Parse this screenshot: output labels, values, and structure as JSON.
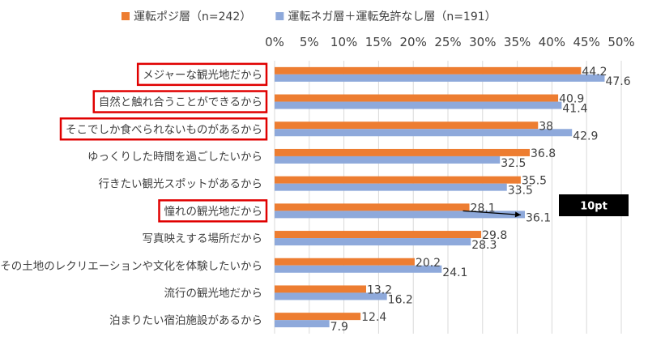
{
  "chart_data": {
    "type": "bar",
    "orientation": "horizontal",
    "categories": [
      "メジャーな観光地だから",
      "自然と触れ合うことができるから",
      "そこでしか食べられないものがあるから",
      "ゆっくりした時間を過ごしたいから",
      "行きたい観光スポットがあるから",
      "憧れの観光地だから",
      "写真映えする場所だから",
      "その土地のレクリエーションや文化を体験したいから",
      "流行の観光地だから",
      "泊まりたい宿泊施設があるから"
    ],
    "series": [
      {
        "name": "運転ポジ層（n=242）",
        "color": "#ED7D31",
        "values": [
          44.2,
          40.9,
          38,
          36.8,
          35.5,
          28.1,
          29.8,
          20.2,
          13.2,
          12.4
        ]
      },
      {
        "name": "運転ネガ層＋運転免許なし層（n=191）",
        "color": "#8EA9DB",
        "values": [
          47.6,
          41.4,
          42.9,
          32.5,
          33.5,
          36.1,
          28.3,
          24.1,
          16.2,
          7.9
        ]
      }
    ],
    "value_labels": [
      [
        "44.2",
        "40.9",
        "38",
        "36.8",
        "35.5",
        "28.1",
        "29.8",
        "20.2",
        "13.2",
        "12.4"
      ],
      [
        "47.6",
        "41.4",
        "42.9",
        "32.5",
        "33.5",
        "36.1",
        "28.3",
        "24.1",
        "16.2",
        "7.9"
      ]
    ],
    "xlim": [
      0,
      50
    ],
    "ticks": [
      "0%",
      "5%",
      "10%",
      "15%",
      "20%",
      "25%",
      "30%",
      "35%",
      "40%",
      "45%",
      "50%"
    ],
    "grid": true,
    "legend_position": "top",
    "highlighted_categories": [
      0,
      1,
      2,
      5
    ],
    "highlight_color": "#E00000",
    "annotation": {
      "text": "10pt",
      "category_index": 5,
      "from_value": 28.1,
      "to_value": 36.1
    }
  }
}
